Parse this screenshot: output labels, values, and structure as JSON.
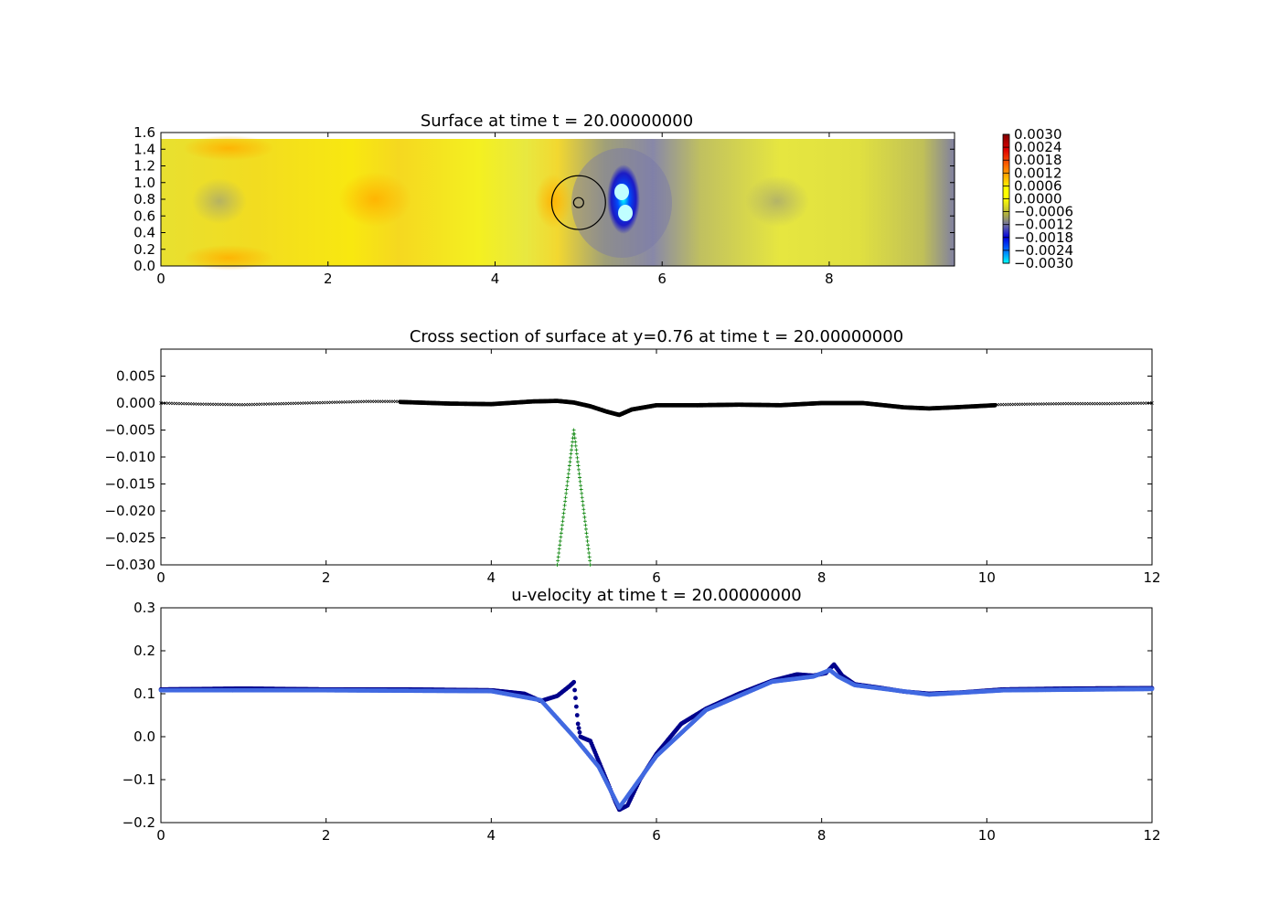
{
  "chart_data": [
    {
      "type": "heatmap",
      "title": "Surface at time t =    20.00000000",
      "xlim": [
        0,
        9.5
      ],
      "ylim": [
        0,
        1.6
      ],
      "xticks": [
        "0",
        "2",
        "4",
        "6",
        "8"
      ],
      "yticks": [
        "0.0",
        "0.2",
        "0.4",
        "0.6",
        "0.8",
        "1.0",
        "1.2",
        "1.4",
        "1.6"
      ],
      "colorbar": {
        "range": [
          -0.003,
          0.003
        ],
        "ticks": [
          "0.0030",
          "0.0024",
          "0.0018",
          "0.0012",
          "0.0006",
          "0.0000",
          "−0.0006",
          "−0.0012",
          "−0.0018",
          "−0.0024",
          "−0.0030"
        ]
      },
      "grid": false,
      "features": [
        {
          "kind": "circle",
          "cx": 5.0,
          "cy": 0.76,
          "r": 0.35
        },
        {
          "kind": "circle",
          "cx": 5.0,
          "cy": 0.76,
          "r": 0.06
        }
      ]
    },
    {
      "type": "scatter",
      "title": "Cross section of surface at y=0.76 at time t =    20.00000000",
      "xlim": [
        0,
        12
      ],
      "ylim": [
        -0.03,
        0.01
      ],
      "xticks": [
        "0",
        "2",
        "4",
        "6",
        "8",
        "10",
        "12"
      ],
      "yticks": [
        "0.005",
        "0.000",
        "−0.005",
        "−0.010",
        "−0.015",
        "−0.020",
        "−0.025",
        "−0.030"
      ],
      "grid": false,
      "series": [
        {
          "color": "#000000",
          "marker": "x",
          "x": [
            0,
            0.5,
            1.0,
            1.5,
            2.0,
            2.5,
            2.9
          ],
          "y": [
            0.0,
            -0.0002,
            -0.0003,
            -0.0001,
            0.0001,
            0.0003,
            0.0003
          ]
        },
        {
          "color": "#000000",
          "marker": "o",
          "x": [
            2.9,
            3.5,
            4.0,
            4.5,
            4.8,
            5.0,
            5.2,
            5.4,
            5.55,
            5.7,
            6.0,
            6.5,
            7.0,
            7.5,
            8.0,
            8.5,
            9.0,
            9.3,
            9.6,
            10.1
          ],
          "y": [
            0.0002,
            -0.0001,
            -0.0002,
            0.0003,
            0.0004,
            0.0001,
            -0.0006,
            -0.0016,
            -0.0022,
            -0.0012,
            -0.0004,
            -0.0004,
            -0.0003,
            -0.0004,
            0.0,
            0.0,
            -0.0008,
            -0.001,
            -0.0008,
            -0.0004
          ]
        },
        {
          "color": "#000000",
          "marker": "x",
          "x": [
            10.1,
            10.5,
            11.0,
            11.5,
            12.0
          ],
          "y": [
            -0.0003,
            -0.0002,
            -0.0001,
            -0.0001,
            0.0
          ]
        },
        {
          "color": "#008000",
          "marker": "+",
          "x": [
            4.8,
            4.9,
            5.0,
            5.1,
            5.2
          ],
          "y": [
            -0.03,
            -0.0175,
            -0.005,
            -0.0175,
            -0.03
          ]
        }
      ]
    },
    {
      "type": "scatter",
      "title": "u-velocity at time t =    20.00000000",
      "xlim": [
        0,
        12
      ],
      "ylim": [
        -0.2,
        0.3
      ],
      "xticks": [
        "0",
        "2",
        "4",
        "6",
        "8",
        "10",
        "12"
      ],
      "yticks": [
        "0.3",
        "0.2",
        "0.1",
        "0.0",
        "−0.1",
        "−0.2"
      ],
      "grid": false,
      "series": [
        {
          "color": "#00008b",
          "marker": "o",
          "x": [
            0,
            1.0,
            2.0,
            3.0,
            4.0,
            4.4,
            4.6,
            4.8,
            4.95,
            5.0,
            5.02,
            5.05,
            5.08,
            5.1,
            5.2,
            5.35,
            5.5,
            5.55,
            5.65,
            5.8,
            6.0,
            6.3,
            6.6,
            7.0,
            7.4,
            7.7,
            7.9,
            8.05,
            8.15,
            8.25,
            8.4,
            8.7,
            9.0,
            9.3,
            9.7,
            10.2,
            11.0,
            12.0
          ],
          "y": [
            0.11,
            0.112,
            0.11,
            0.11,
            0.108,
            0.1,
            0.083,
            0.095,
            0.118,
            0.127,
            0.09,
            0.03,
            0.0,
            -0.002,
            -0.01,
            -0.08,
            -0.15,
            -0.17,
            -0.16,
            -0.1,
            -0.04,
            0.03,
            0.065,
            0.1,
            0.13,
            0.145,
            0.142,
            0.148,
            0.168,
            0.142,
            0.122,
            0.114,
            0.105,
            0.1,
            0.103,
            0.11,
            0.112,
            0.113
          ]
        },
        {
          "color": "#4169e1",
          "marker": "o",
          "x": [
            0,
            2.0,
            4.0,
            4.6,
            5.0,
            5.3,
            5.55,
            6.0,
            6.6,
            7.4,
            7.9,
            8.1,
            8.2,
            8.4,
            9.3,
            10.2,
            12.0
          ],
          "y": [
            0.108,
            0.108,
            0.106,
            0.085,
            0.0,
            -0.07,
            -0.165,
            -0.045,
            0.062,
            0.128,
            0.14,
            0.155,
            0.14,
            0.12,
            0.098,
            0.108,
            0.111
          ]
        }
      ]
    }
  ]
}
